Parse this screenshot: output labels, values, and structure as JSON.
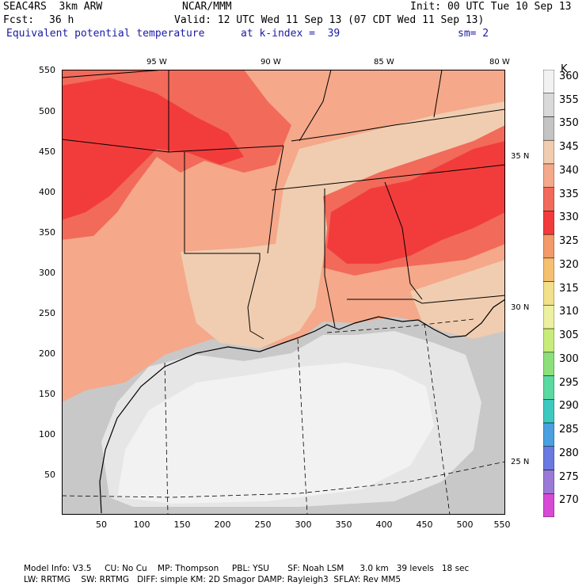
{
  "header": {
    "model": "SEAC4RS  3km ARW",
    "org": "NCAR/MMM",
    "init": "Init: 00 UTC Tue 10 Sep 13",
    "fcst_label": "Fcst:",
    "fcst_value": "36 h",
    "valid": "Valid: 12 UTC Wed 11 Sep 13 (07 CDT Wed 11 Sep 13)",
    "field": "Equivalent potential temperature",
    "level": "at k-index =  39",
    "smooth": "sm= 2"
  },
  "map": {
    "lon_labels": [
      "95 W",
      "90 W",
      "85 W",
      "80 W"
    ],
    "lat_labels": [
      "35 N",
      "30 N",
      "25 N"
    ],
    "y_ticks": [
      "550",
      "500",
      "450",
      "400",
      "350",
      "300",
      "250",
      "200",
      "150",
      "100",
      "50"
    ],
    "x_ticks": [
      "50",
      "100",
      "150",
      "200",
      "250",
      "300",
      "350",
      "400",
      "450",
      "500",
      "550"
    ]
  },
  "colorbar": {
    "unit": "K",
    "levels": [
      "360",
      "355",
      "350",
      "345",
      "340",
      "335",
      "330",
      "325",
      "320",
      "315",
      "310",
      "305",
      "300",
      "295",
      "290",
      "285",
      "280",
      "275",
      "270"
    ],
    "colors": [
      "#f2f2f2",
      "#d9d9d9",
      "#c4c4c4",
      "#f0cdb0",
      "#f5a88a",
      "#f26a5a",
      "#f23c3c",
      "#f29a6a",
      "#f5c070",
      "#f2e08a",
      "#edf0a0",
      "#c8ec7a",
      "#8ce07a",
      "#5ad9a0",
      "#3ec9c0",
      "#4aa0e0",
      "#6a7ae0",
      "#9a7ad6",
      "#d64ad6"
    ]
  },
  "footer": {
    "line1": "Model Info: V3.5     CU: No Cu    MP: Thompson     PBL: YSU       SF: Noah LSM      3.0 km   39 levels   18 sec",
    "line2": "LW: RRTMG    SW: RRTMG   DIFF: simple KM: 2D Smagor DAMP: Rayleigh3  SFLAY: Rev MM5"
  }
}
